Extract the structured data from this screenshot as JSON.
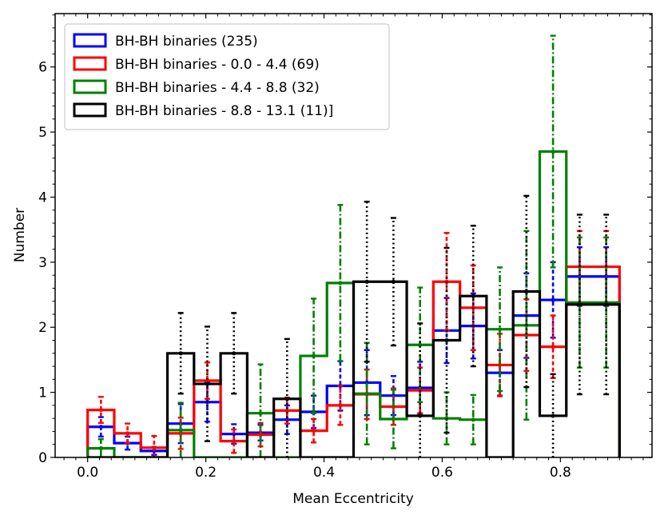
{
  "chart_data": {
    "type": "histogram",
    "title": "",
    "xlabel": "Mean Eccentricity",
    "ylabel": "Number",
    "xlim": [
      -0.055,
      0.955
    ],
    "ylim": [
      0,
      6.82
    ],
    "xticks": [
      0.0,
      0.2,
      0.4,
      0.6,
      0.8
    ],
    "xtick_labels": [
      "0.0",
      "0.2",
      "0.4",
      "0.6",
      "0.8"
    ],
    "yticks": [
      0,
      1,
      2,
      3,
      4,
      5,
      6
    ],
    "ytick_labels": [
      "0",
      "1",
      "2",
      "3",
      "4",
      "5",
      "6"
    ],
    "bin_edges": [
      0.0,
      0.045,
      0.09,
      0.135,
      0.18,
      0.225,
      0.27,
      0.315,
      0.36,
      0.405,
      0.45,
      0.495,
      0.54,
      0.585,
      0.63,
      0.675,
      0.72,
      0.765,
      0.81,
      0.855,
      0.9
    ],
    "legend_position": "upper-left",
    "series": [
      {
        "name": "BH-BH binaries (235)",
        "color": "#0000ff",
        "error_style": "dashed",
        "values": [
          0.47,
          0.22,
          0.1,
          0.52,
          0.85,
          0.36,
          0.38,
          0.58,
          0.7,
          1.1,
          1.15,
          0.95,
          1.07,
          1.95,
          2.02,
          1.3,
          2.18,
          2.42,
          2.78,
          2.78
        ],
        "errors": [
          0.15,
          0.1,
          0.06,
          0.3,
          0.3,
          0.15,
          0.12,
          0.22,
          0.25,
          0.38,
          0.5,
          0.3,
          0.4,
          0.5,
          0.5,
          0.35,
          0.65,
          0.58,
          0.45,
          0.45
        ]
      },
      {
        "name": "BH-BH binaries - 0.0 - 4.4 (69)",
        "color": "#ff0000",
        "error_style": "dashed",
        "values": [
          0.73,
          0.37,
          0.15,
          0.37,
          1.18,
          0.25,
          0.35,
          0.72,
          0.41,
          0.8,
          0.97,
          0.78,
          1.03,
          2.7,
          2.3,
          1.42,
          1.88,
          1.7,
          2.93,
          2.93
        ],
        "errors": [
          0.2,
          0.15,
          0.18,
          0.24,
          0.28,
          0.18,
          0.18,
          0.2,
          0.18,
          0.3,
          0.38,
          0.28,
          0.35,
          0.75,
          0.65,
          0.48,
          0.55,
          0.48,
          0.55,
          0.55
        ]
      },
      {
        "name": "BH-BH binaries - 4.4 - 8.8 (32)",
        "color": "#008000",
        "error_style": "dashdot",
        "values": [
          0.14,
          0.0,
          0.0,
          0.42,
          0.0,
          0.0,
          0.68,
          0.0,
          1.56,
          2.68,
          0.98,
          0.59,
          1.73,
          0.6,
          0.58,
          1.97,
          2.03,
          4.7,
          2.38,
          2.38
        ],
        "errors": [
          0.14,
          0.0,
          0.0,
          0.42,
          0.0,
          0.0,
          0.75,
          0.0,
          0.88,
          1.2,
          0.78,
          0.45,
          0.88,
          0.4,
          0.38,
          0.95,
          1.45,
          1.78,
          1.0,
          1.0
        ]
      },
      {
        "name": "BH-BH binaries - 8.8 - 13.1 (11)]",
        "color": "#000000",
        "error_style": "dotted",
        "values": [
          0.0,
          0.0,
          0.0,
          1.6,
          1.13,
          1.6,
          0.0,
          0.9,
          0.0,
          0.0,
          2.7,
          2.7,
          0.64,
          1.8,
          2.48,
          0.0,
          2.55,
          0.64,
          2.35,
          2.35
        ],
        "errors": [
          0.0,
          0.0,
          0.0,
          0.62,
          0.88,
          0.62,
          0.0,
          0.92,
          0.0,
          0.0,
          1.23,
          0.98,
          1.42,
          1.42,
          1.08,
          0.0,
          1.47,
          0.64,
          1.38,
          1.38
        ]
      }
    ]
  }
}
